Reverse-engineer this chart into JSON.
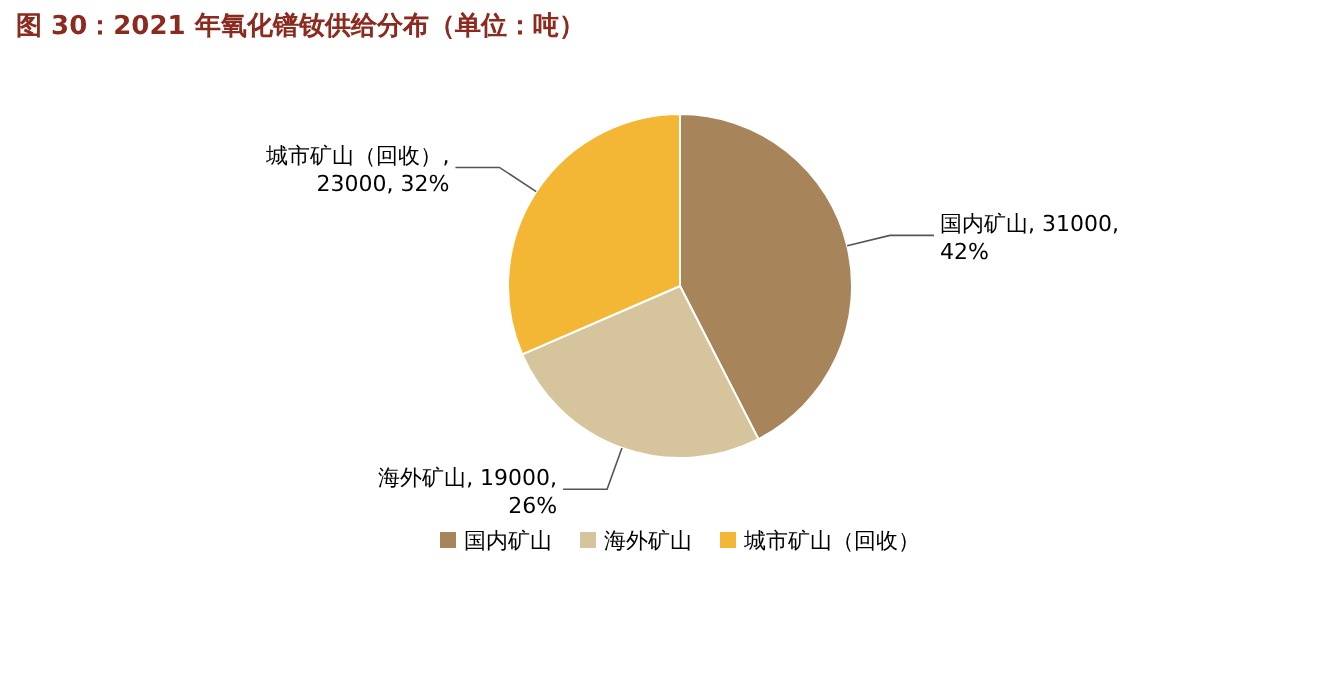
{
  "chart_data": {
    "type": "pie",
    "title": "图 30：2021 年氧化镨钕供给分布（单位：吨）",
    "categories": [
      "国内矿山",
      "海外矿山",
      "城市矿山（回收）"
    ],
    "values": [
      31000,
      19000,
      23000
    ],
    "colors": [
      "#a8845a",
      "#d6c59c",
      "#f3b635"
    ],
    "value_labels": [
      ", 31000, 42%",
      ", 19000, 26%",
      ", 23000, 32%"
    ],
    "legend": "bottom"
  }
}
